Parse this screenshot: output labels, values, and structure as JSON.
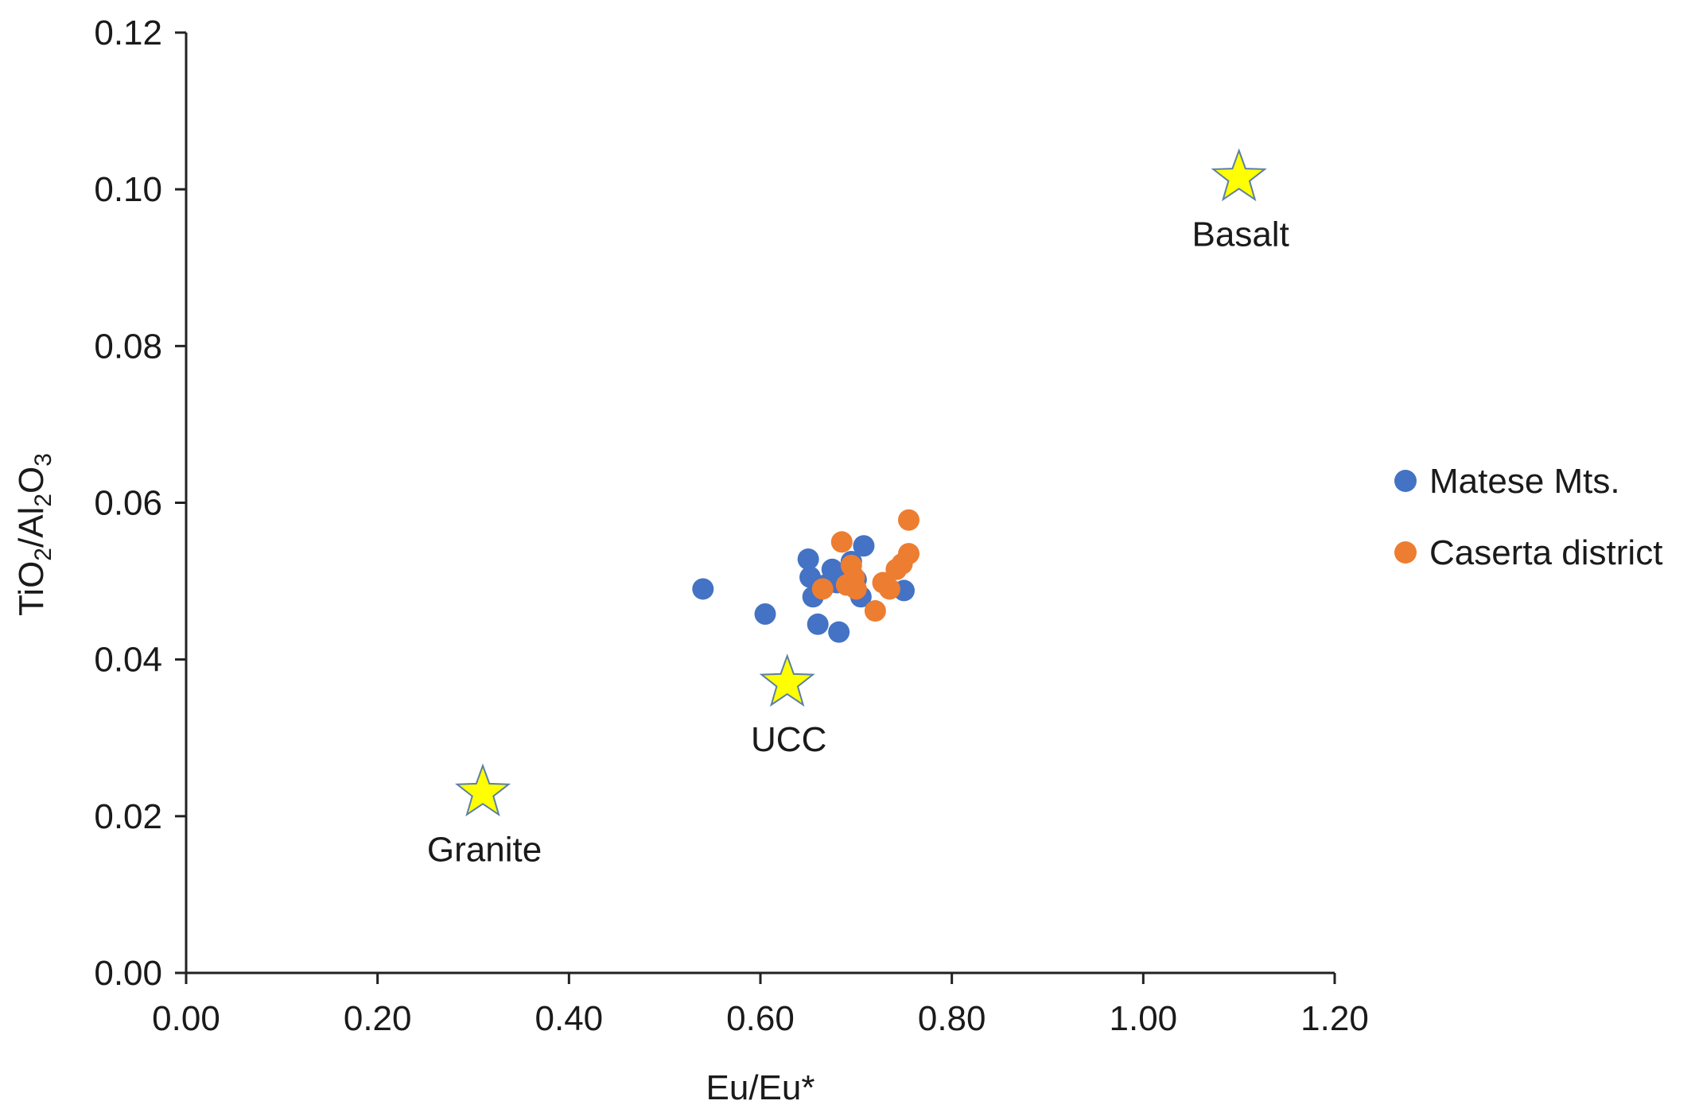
{
  "chart_data": {
    "type": "scatter",
    "title": "",
    "xlabel": "Eu/Eu*",
    "ylabel_parts": [
      "TiO",
      "2",
      "/Al",
      "2",
      "O",
      "3"
    ],
    "xlim": [
      0,
      1.2
    ],
    "ylim": [
      0,
      0.12
    ],
    "x_ticks": [
      0,
      0.2,
      0.4,
      0.6,
      0.8,
      1.0,
      1.2
    ],
    "x_tick_labels": [
      "0.00",
      "0.20",
      "0.40",
      "0.60",
      "0.80",
      "1.00",
      "1.20"
    ],
    "y_ticks": [
      0,
      0.02,
      0.04,
      0.06,
      0.08,
      0.1,
      0.12
    ],
    "y_tick_labels": [
      "0.00",
      "0.02",
      "0.04",
      "0.06",
      "0.08",
      "0.10",
      "0.12"
    ],
    "grid": false,
    "legend_position": "right",
    "series": [
      {
        "name": "Matese Mts.",
        "color": "#4472C4",
        "points": [
          {
            "x": 0.54,
            "y": 0.049
          },
          {
            "x": 0.605,
            "y": 0.0458
          },
          {
            "x": 0.65,
            "y": 0.0528
          },
          {
            "x": 0.652,
            "y": 0.0505
          },
          {
            "x": 0.655,
            "y": 0.048
          },
          {
            "x": 0.66,
            "y": 0.0445
          },
          {
            "x": 0.668,
            "y": 0.0495
          },
          {
            "x": 0.675,
            "y": 0.0515
          },
          {
            "x": 0.68,
            "y": 0.0498
          },
          {
            "x": 0.682,
            "y": 0.0435
          },
          {
            "x": 0.69,
            "y": 0.0508
          },
          {
            "x": 0.695,
            "y": 0.0525
          },
          {
            "x": 0.7,
            "y": 0.0502
          },
          {
            "x": 0.705,
            "y": 0.048
          },
          {
            "x": 0.708,
            "y": 0.0545
          },
          {
            "x": 0.75,
            "y": 0.0488
          }
        ]
      },
      {
        "name": "Caserta district",
        "color": "#ED7D31",
        "points": [
          {
            "x": 0.665,
            "y": 0.049
          },
          {
            "x": 0.685,
            "y": 0.055
          },
          {
            "x": 0.69,
            "y": 0.0495
          },
          {
            "x": 0.695,
            "y": 0.052
          },
          {
            "x": 0.698,
            "y": 0.0505
          },
          {
            "x": 0.7,
            "y": 0.049
          },
          {
            "x": 0.72,
            "y": 0.0462
          },
          {
            "x": 0.728,
            "y": 0.0498
          },
          {
            "x": 0.735,
            "y": 0.049
          },
          {
            "x": 0.742,
            "y": 0.0515
          },
          {
            "x": 0.748,
            "y": 0.0522
          },
          {
            "x": 0.755,
            "y": 0.0535
          },
          {
            "x": 0.755,
            "y": 0.0578
          }
        ]
      }
    ],
    "reference_points": [
      {
        "label": "Basalt",
        "x": 1.1,
        "y": 0.1015,
        "marker": "star",
        "color": "#FFFF00",
        "label_position": "below"
      },
      {
        "label": "UCC",
        "x": 0.628,
        "y": 0.037,
        "marker": "star",
        "color": "#FFFF00",
        "label_position": "below"
      },
      {
        "label": "Granite",
        "x": 0.31,
        "y": 0.023,
        "marker": "star",
        "color": "#FFFF00",
        "label_position": "below"
      }
    ],
    "annotations": []
  }
}
